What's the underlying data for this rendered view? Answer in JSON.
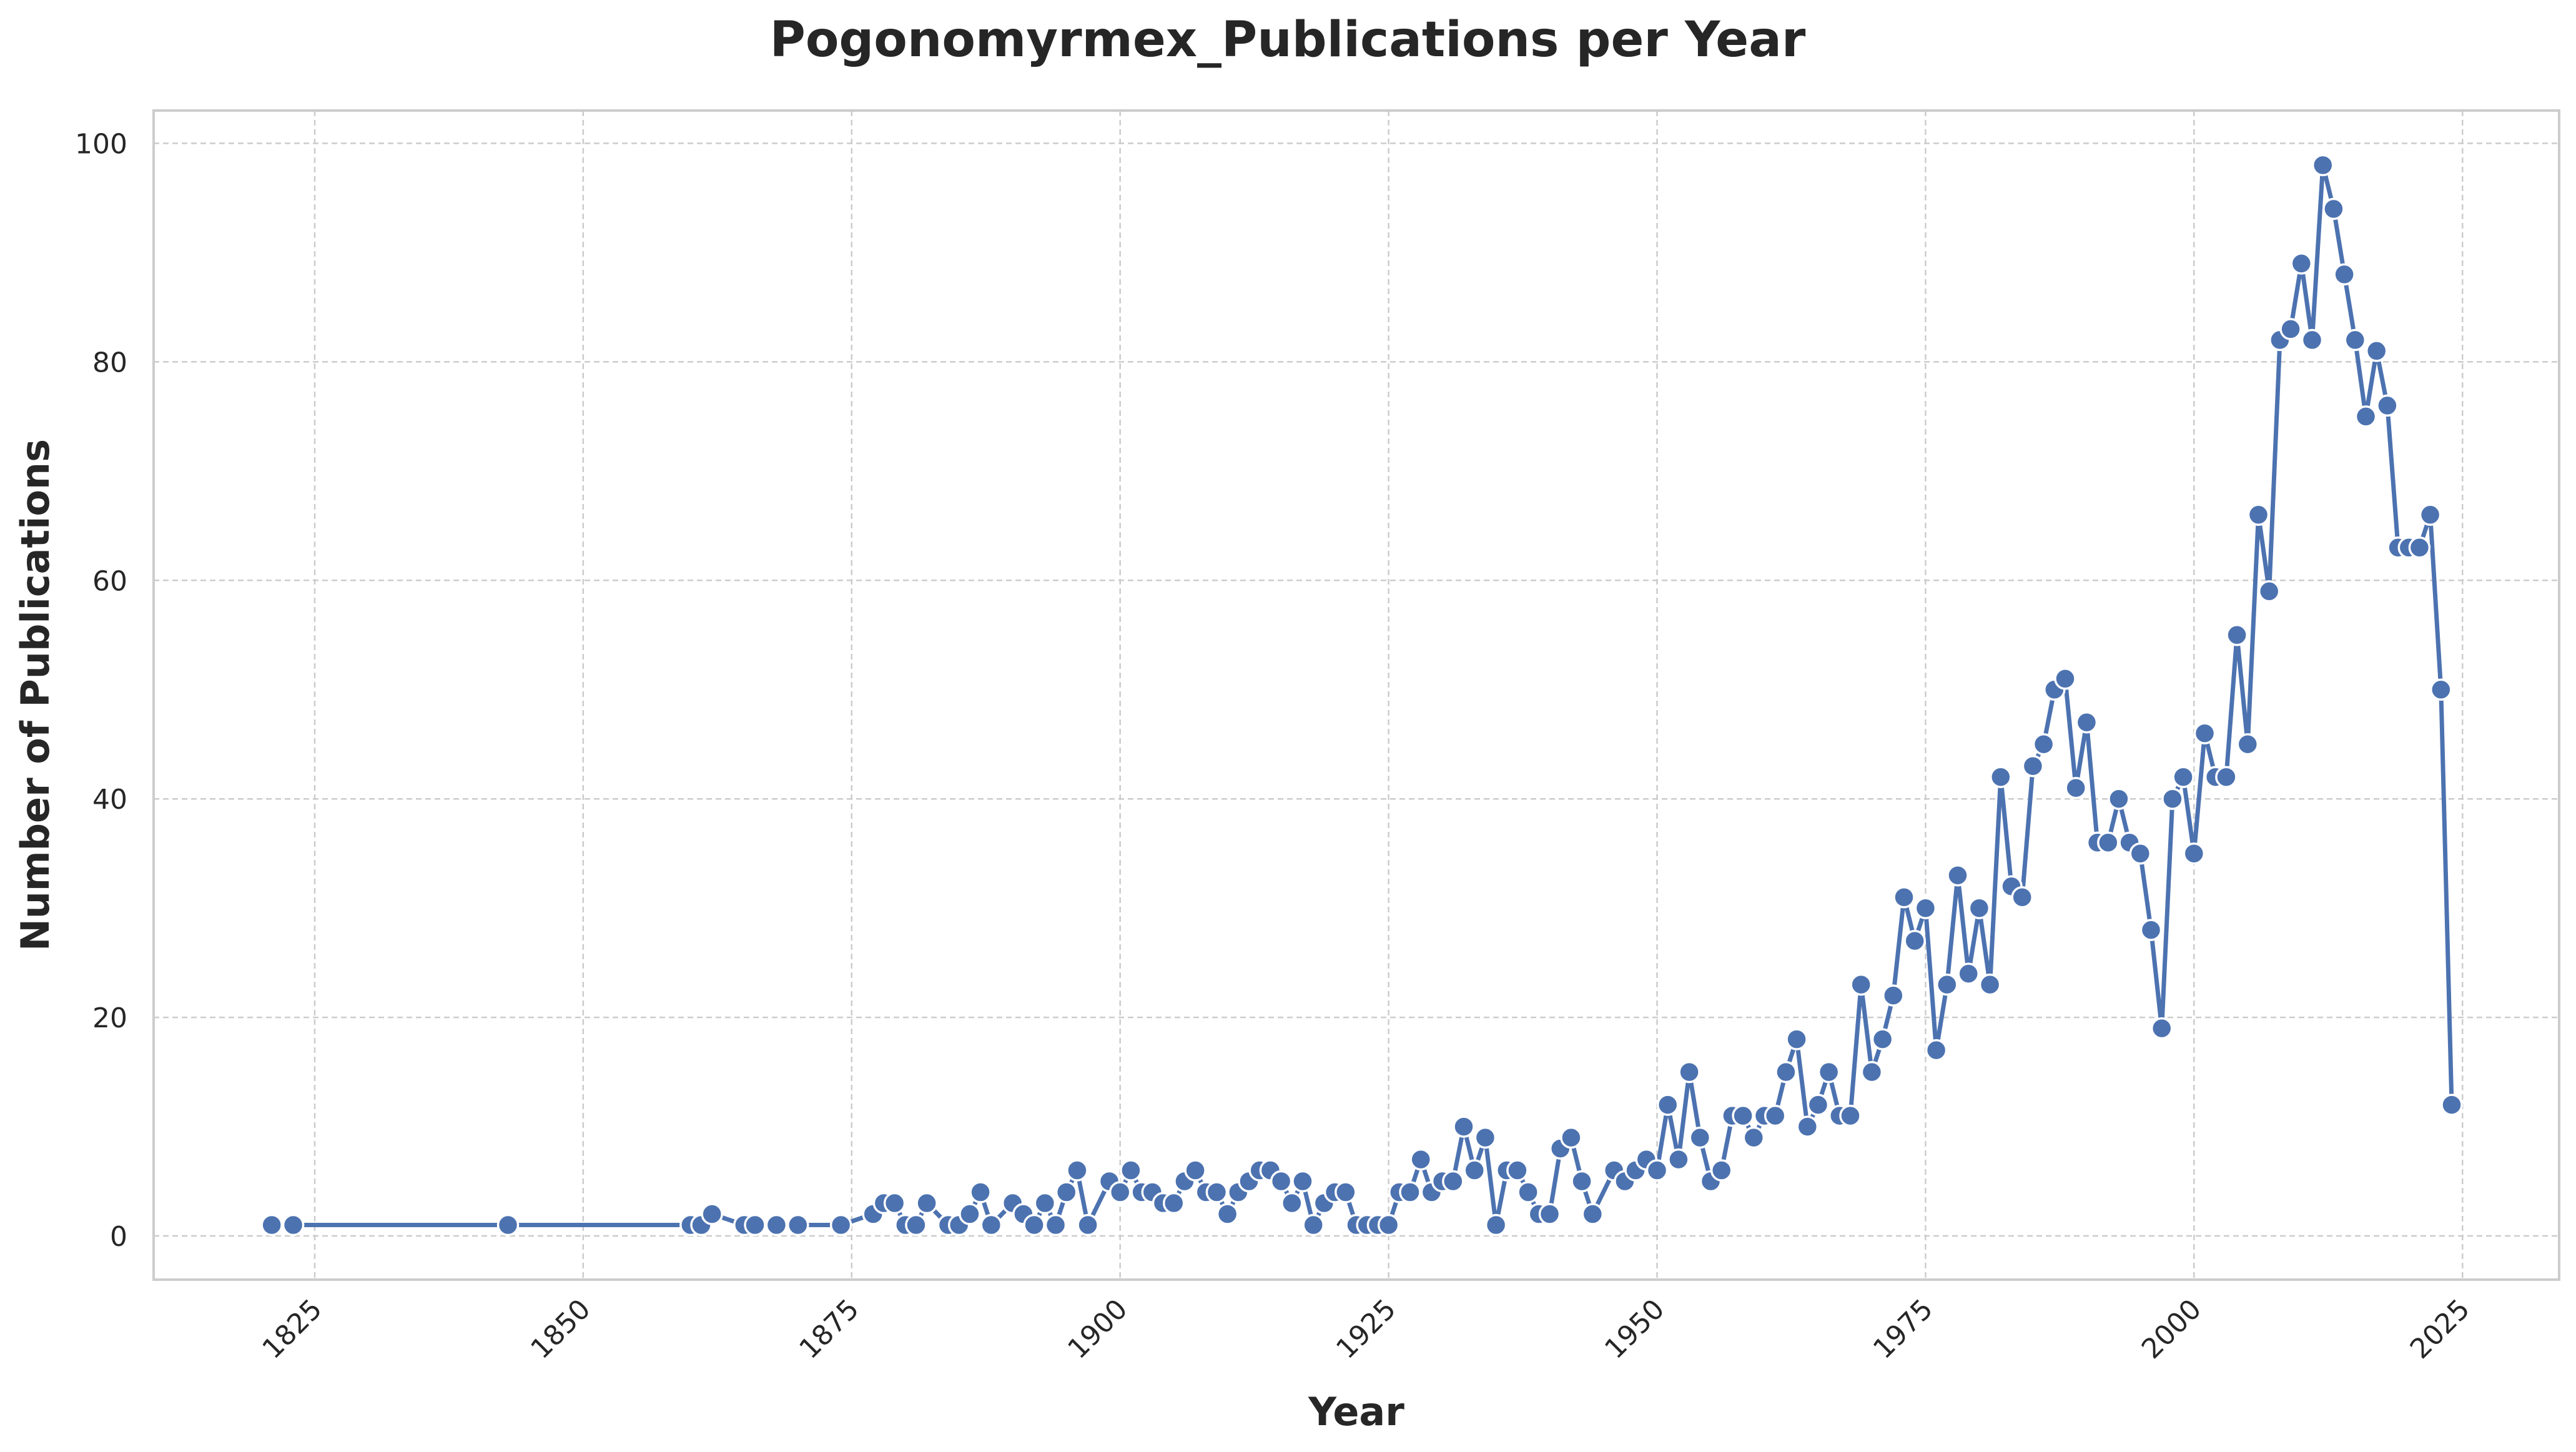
{
  "chart_data": {
    "type": "line",
    "title": "Pogonomyrmex_Publications per Year",
    "xlabel": "Year",
    "ylabel": "Number of Publications",
    "xlim": [
      1810,
      2034
    ],
    "ylim": [
      -4,
      103
    ],
    "xticks": [
      1825,
      1850,
      1875,
      1900,
      1925,
      1950,
      1975,
      2000,
      2025
    ],
    "yticks": [
      0,
      20,
      40,
      60,
      80,
      100
    ],
    "grid": true,
    "color": "#4c72b0",
    "x": [
      1821,
      1823,
      1843,
      1860,
      1861,
      1862,
      1865,
      1866,
      1868,
      1870,
      1874,
      1877,
      1878,
      1879,
      1880,
      1881,
      1882,
      1884,
      1885,
      1886,
      1887,
      1888,
      1890,
      1891,
      1892,
      1893,
      1894,
      1895,
      1896,
      1897,
      1899,
      1900,
      1901,
      1902,
      1903,
      1904,
      1905,
      1906,
      1907,
      1908,
      1909,
      1910,
      1911,
      1912,
      1913,
      1914,
      1915,
      1916,
      1917,
      1918,
      1919,
      1920,
      1921,
      1922,
      1923,
      1924,
      1925,
      1926,
      1927,
      1928,
      1929,
      1930,
      1931,
      1932,
      1933,
      1934,
      1935,
      1936,
      1937,
      1938,
      1939,
      1940,
      1941,
      1942,
      1943,
      1944,
      1946,
      1947,
      1948,
      1949,
      1950,
      1951,
      1952,
      1953,
      1954,
      1955,
      1956,
      1957,
      1958,
      1959,
      1960,
      1961,
      1962,
      1963,
      1964,
      1965,
      1966,
      1967,
      1968,
      1969,
      1970,
      1971,
      1972,
      1973,
      1974,
      1975,
      1976,
      1977,
      1978,
      1979,
      1980,
      1981,
      1982,
      1983,
      1984,
      1985,
      1986,
      1987,
      1988,
      1989,
      1990,
      1991,
      1992,
      1993,
      1994,
      1995,
      1996,
      1997,
      1998,
      1999,
      2000,
      2001,
      2002,
      2003,
      2004,
      2005,
      2006,
      2007,
      2008,
      2009,
      2010,
      2011,
      2012,
      2013,
      2014,
      2015,
      2016,
      2017,
      2018,
      2019,
      2020,
      2021,
      2022,
      2023,
      2024
    ],
    "y": [
      1,
      1,
      1,
      1,
      1,
      2,
      1,
      1,
      1,
      1,
      1,
      2,
      3,
      3,
      1,
      1,
      3,
      1,
      1,
      2,
      4,
      1,
      3,
      2,
      1,
      3,
      1,
      4,
      6,
      1,
      5,
      4,
      6,
      4,
      4,
      3,
      3,
      5,
      6,
      4,
      4,
      2,
      4,
      5,
      6,
      6,
      5,
      3,
      5,
      1,
      3,
      4,
      4,
      1,
      1,
      1,
      1,
      4,
      4,
      7,
      4,
      5,
      5,
      10,
      6,
      9,
      1,
      6,
      6,
      4,
      2,
      2,
      8,
      9,
      5,
      2,
      6,
      5,
      6,
      7,
      6,
      12,
      7,
      15,
      9,
      5,
      6,
      11,
      11,
      9,
      11,
      11,
      15,
      18,
      10,
      12,
      15,
      11,
      11,
      23,
      15,
      18,
      22,
      31,
      27,
      30,
      17,
      23,
      33,
      24,
      30,
      23,
      42,
      32,
      31,
      43,
      45,
      50,
      51,
      41,
      47,
      36,
      36,
      40,
      36,
      35,
      28,
      19,
      40,
      42,
      35,
      46,
      42,
      42,
      55,
      45,
      66,
      59,
      82,
      83,
      89,
      82,
      98,
      94,
      88,
      82,
      75,
      81,
      76,
      63,
      63,
      63,
      66,
      50,
      12
    ]
  }
}
